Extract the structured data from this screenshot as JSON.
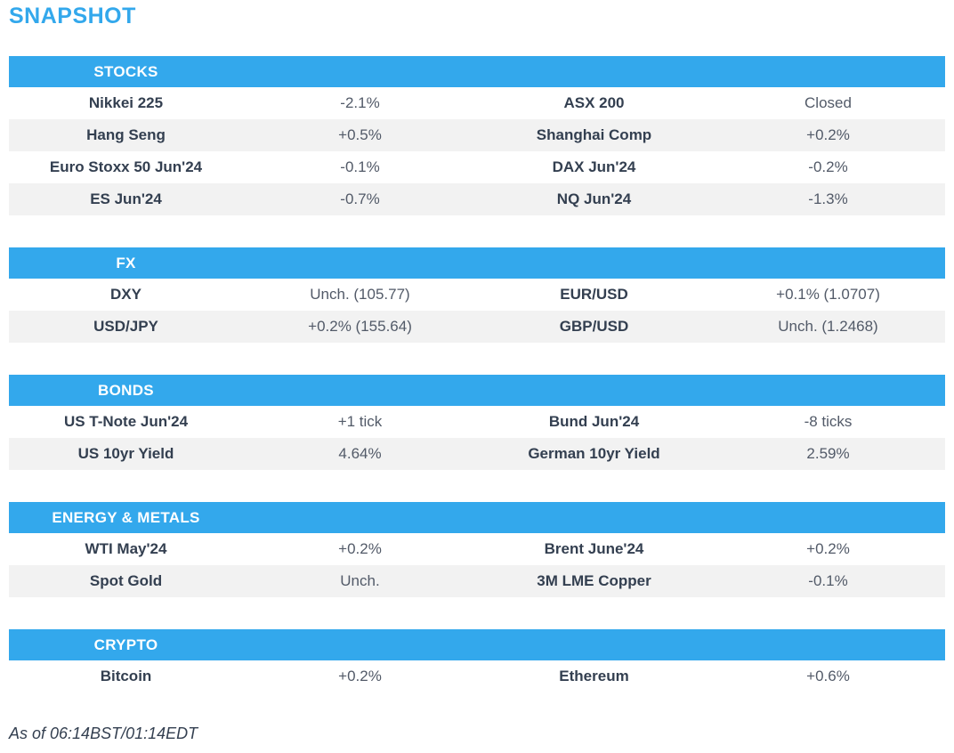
{
  "page_title": "SNAPSHOT",
  "colors": {
    "accent": "#33A8EC",
    "row_alt": "#F2F2F2",
    "label": "#333F50",
    "value": "#525A68"
  },
  "sections": [
    {
      "title": "STOCKS",
      "rows": [
        [
          {
            "label": "Nikkei 225",
            "value": "-2.1%"
          },
          {
            "label": "ASX 200",
            "value": "Closed"
          }
        ],
        [
          {
            "label": "Hang Seng",
            "value": "+0.5%"
          },
          {
            "label": "Shanghai Comp",
            "value": "+0.2%"
          }
        ],
        [
          {
            "label": "Euro Stoxx 50 Jun'24",
            "value": "-0.1%"
          },
          {
            "label": "DAX Jun'24",
            "value": "-0.2%"
          }
        ],
        [
          {
            "label": "ES Jun'24",
            "value": "-0.7%"
          },
          {
            "label": "NQ Jun'24",
            "value": "-1.3%"
          }
        ]
      ]
    },
    {
      "title": "FX",
      "rows": [
        [
          {
            "label": "DXY",
            "value": "Unch. (105.77)"
          },
          {
            "label": "EUR/USD",
            "value": "+0.1% (1.0707)"
          }
        ],
        [
          {
            "label": "USD/JPY",
            "value": "+0.2% (155.64)"
          },
          {
            "label": "GBP/USD",
            "value": "Unch. (1.2468)"
          }
        ]
      ]
    },
    {
      "title": "BONDS",
      "rows": [
        [
          {
            "label": "US T-Note Jun'24",
            "value": "+1 tick"
          },
          {
            "label": "Bund Jun'24",
            "value": "-8 ticks"
          }
        ],
        [
          {
            "label": "US 10yr Yield",
            "value": "4.64%"
          },
          {
            "label": "German 10yr Yield",
            "value": "2.59%"
          }
        ]
      ]
    },
    {
      "title": "ENERGY & METALS",
      "rows": [
        [
          {
            "label": "WTI May'24",
            "value": "+0.2%"
          },
          {
            "label": "Brent June'24",
            "value": "+0.2%"
          }
        ],
        [
          {
            "label": "Spot Gold",
            "value": "Unch."
          },
          {
            "label": "3M LME Copper",
            "value": "-0.1%"
          }
        ]
      ]
    },
    {
      "title": "CRYPTO",
      "rows": [
        [
          {
            "label": "Bitcoin",
            "value": "+0.2%"
          },
          {
            "label": "Ethereum",
            "value": "+0.6%"
          }
        ]
      ]
    }
  ],
  "footer": {
    "as_of": "As of 06:14BST/01:14EDT"
  }
}
